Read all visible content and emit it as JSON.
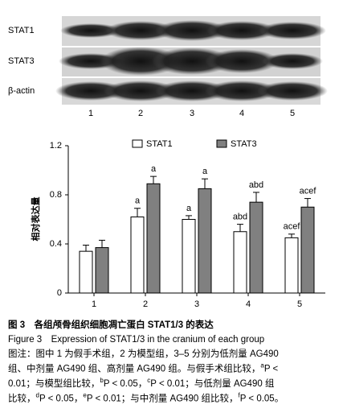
{
  "blot": {
    "rows": [
      "STAT1",
      "STAT3",
      "β-actin"
    ],
    "lanes": [
      "1",
      "2",
      "3",
      "4",
      "5"
    ]
  },
  "chart_data": {
    "type": "bar",
    "ylabel": "相对表达量",
    "categories": [
      "1",
      "2",
      "3",
      "4",
      "5"
    ],
    "series": [
      {
        "name": "STAT1",
        "color": "#ffffff",
        "values": [
          0.34,
          0.62,
          0.6,
          0.5,
          0.45
        ],
        "errors": [
          0.05,
          0.07,
          0.03,
          0.06,
          0.03
        ],
        "bar_labels": [
          null,
          "a",
          "a",
          "abd",
          "acef"
        ]
      },
      {
        "name": "STAT3",
        "color": "#808080",
        "values": [
          0.37,
          0.89,
          0.85,
          0.74,
          0.7
        ],
        "errors": [
          0.06,
          0.06,
          0.08,
          0.08,
          0.07
        ],
        "bar_labels": [
          null,
          "a",
          "a",
          "abd",
          "acef"
        ]
      }
    ],
    "ylim": [
      0,
      1.2
    ],
    "yticks": [
      0,
      0.4,
      0.8,
      1.2
    ]
  },
  "caption": {
    "title_cn": "图 3　各组颅骨组织细胞凋亡蛋白 STAT1/3 的表达",
    "title_en": "Figure 3　Expression of STAT1/3 in the cranium of each group",
    "note": [
      [
        "图注：图中 1 为假手术组，2 为模型组，3–5 分别为低剂量 AG490"
      ],
      [
        "组、中剂量 AG490 组、高剂量 AG490 组。与假手术组比较，",
        "a",
        "P <"
      ],
      [
        "0.01；与模型组比较，",
        "b",
        "P < 0.05，",
        "c",
        "P < 0.01；与低剂量 AG490 组"
      ],
      [
        "比较，",
        "d",
        "P < 0.05，",
        "e",
        "P < 0.01；与中剂量 AG490 组比较，",
        "f",
        "P < 0.05。"
      ]
    ]
  }
}
